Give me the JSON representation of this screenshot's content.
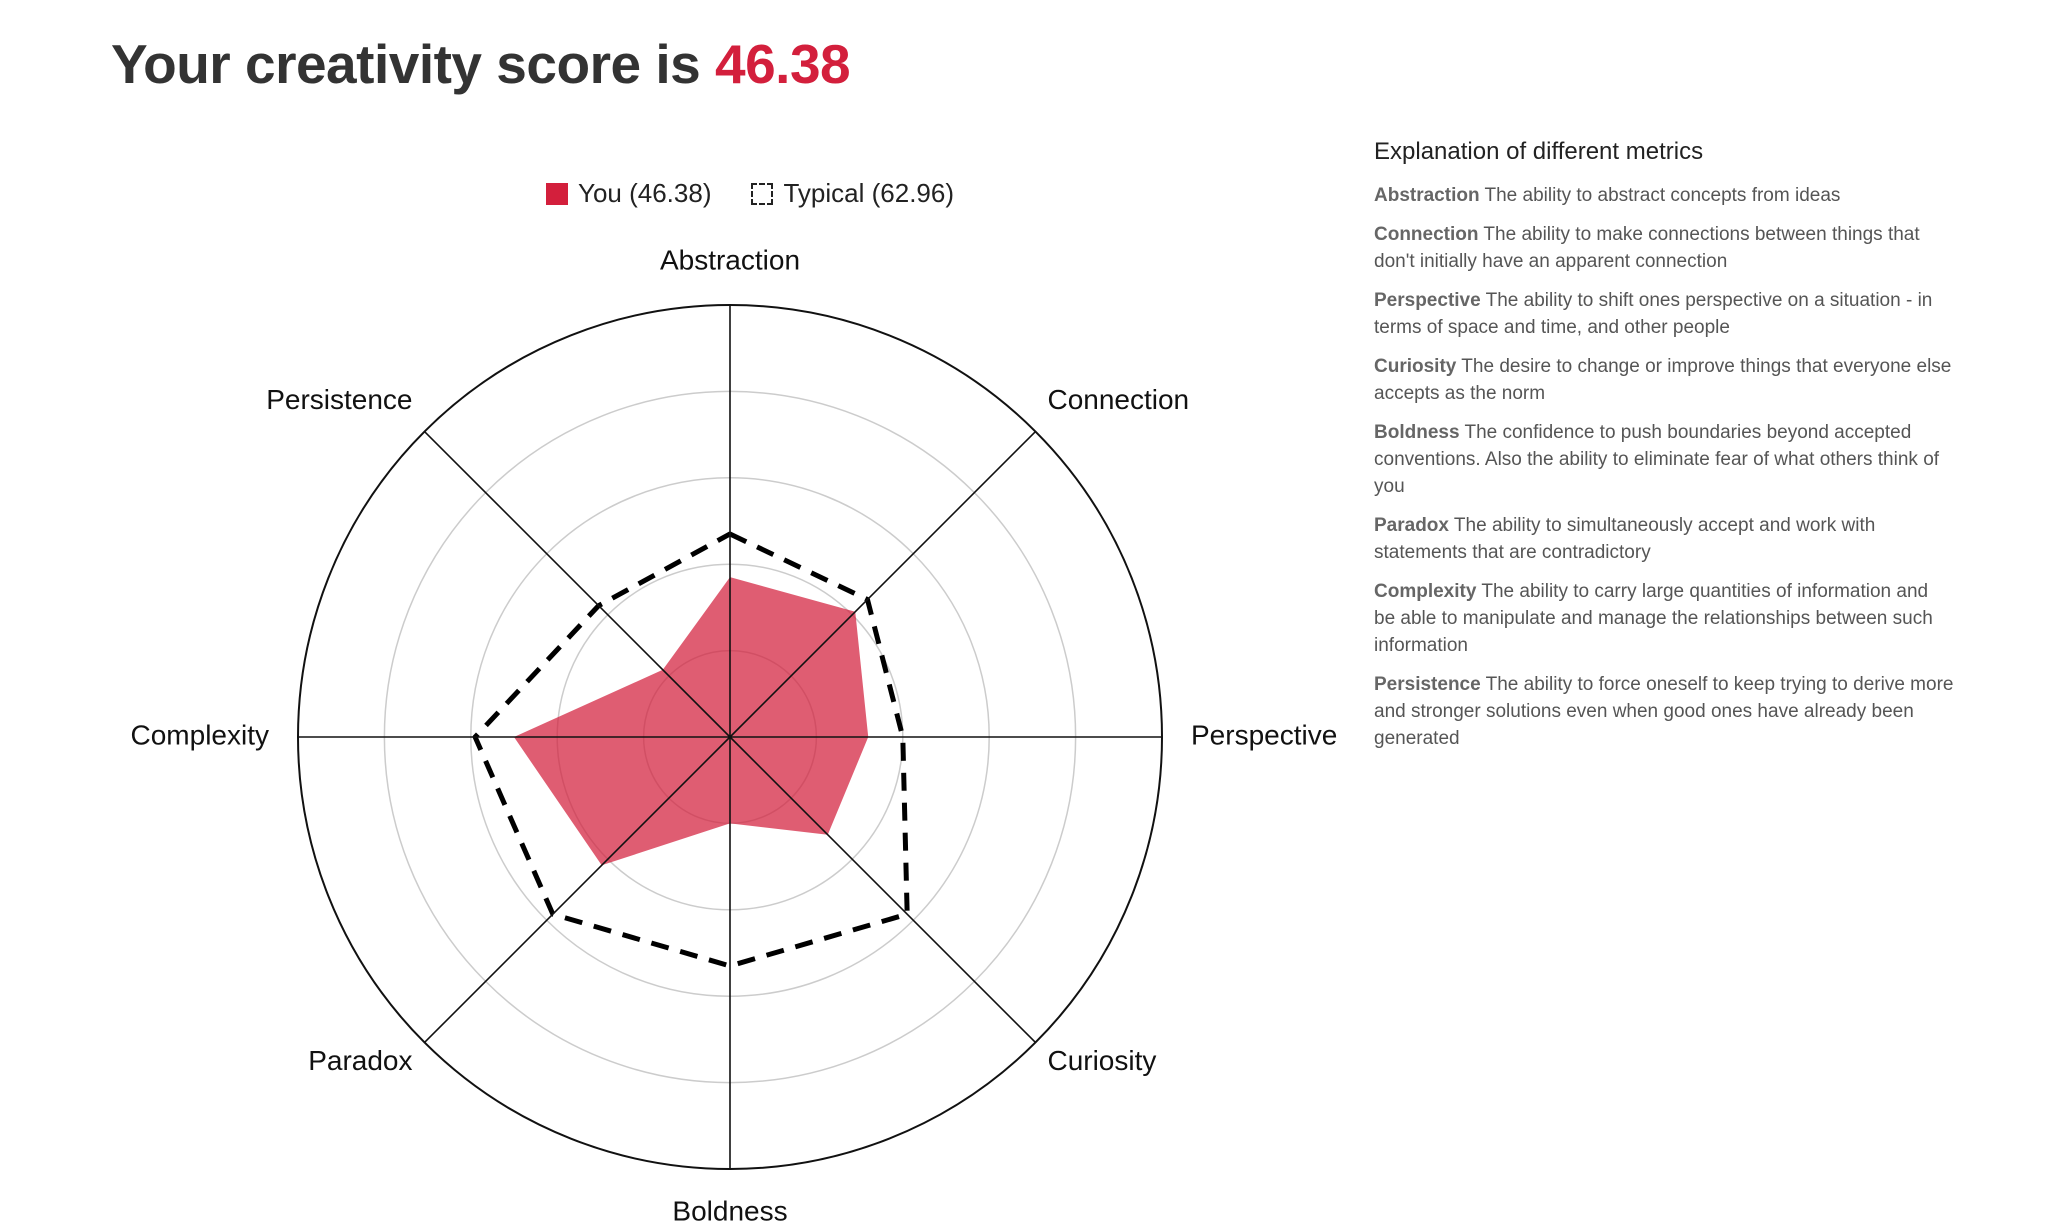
{
  "header": {
    "title_prefix": "Your creativity score is",
    "score": "46.38"
  },
  "legend": {
    "you_label": "You (46.38)",
    "typical_label": "Typical (62.96)"
  },
  "colors": {
    "you_fill": "#d31f3c",
    "typical_stroke": "#000000",
    "score": "#d31f3c"
  },
  "chart_data": {
    "type": "radar",
    "axes": [
      "Abstraction",
      "Connection",
      "Perspective",
      "Curiosity",
      "Boldness",
      "Paradox",
      "Complexity",
      "Persistence"
    ],
    "rlim": [
      0,
      100
    ],
    "rings": 5,
    "series": [
      {
        "name": "You (46.38)",
        "values": [
          37,
          41,
          32,
          32,
          20,
          42,
          50,
          22
        ]
      },
      {
        "name": "Typical (62.96)",
        "values": [
          47,
          45,
          40,
          58,
          53,
          58,
          59,
          43
        ]
      }
    ],
    "legend_position": "top"
  },
  "explanations": {
    "title": "Explanation of different metrics",
    "items": [
      {
        "name": "Abstraction",
        "text": "The ability to abstract concepts from ideas"
      },
      {
        "name": "Connection",
        "text": "The ability to make connections between things that don't initially have an apparent connection"
      },
      {
        "name": "Perspective",
        "text": "The ability to shift ones perspective on a situation - in terms of space and time, and other people"
      },
      {
        "name": "Curiosity",
        "text": "The desire to change or improve things that everyone else accepts as the norm"
      },
      {
        "name": "Boldness",
        "text": "The confidence to push boundaries beyond accepted conventions. Also the ability to eliminate fear of what others think of you"
      },
      {
        "name": "Paradox",
        "text": "The ability to simultaneously accept and work with statements that are contradictory"
      },
      {
        "name": "Complexity",
        "text": "The ability to carry large quantities of information and be able to manipulate and manage the relationships between such information"
      },
      {
        "name": "Persistence",
        "text": "The ability to force oneself to keep trying to derive more and stronger solutions even when good ones have already been generated"
      }
    ]
  }
}
